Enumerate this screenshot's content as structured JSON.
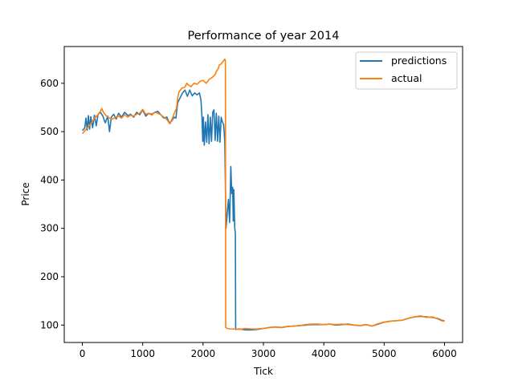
{
  "chart_data": {
    "type": "line",
    "title": "Performance of year 2014",
    "xlabel": "Tick",
    "ylabel": "Price",
    "xlim": [
      -300,
      6300
    ],
    "ylim": [
      64,
      676
    ],
    "xticks": [
      0,
      1000,
      2000,
      3000,
      4000,
      5000,
      6000
    ],
    "yticks": [
      100,
      200,
      300,
      400,
      500,
      600
    ],
    "grid": false,
    "legend_position": "top-right",
    "series": [
      {
        "name": "predictions",
        "color": "#1f77b4",
        "points": [
          [
            0,
            502
          ],
          [
            40,
            508
          ],
          [
            60,
            528
          ],
          [
            80,
            503
          ],
          [
            100,
            533
          ],
          [
            120,
            505
          ],
          [
            140,
            531
          ],
          [
            170,
            508
          ],
          [
            200,
            534
          ],
          [
            230,
            512
          ],
          [
            260,
            536
          ],
          [
            300,
            540
          ],
          [
            340,
            532
          ],
          [
            380,
            518
          ],
          [
            420,
            532
          ],
          [
            450,
            500
          ],
          [
            480,
            530
          ],
          [
            520,
            536
          ],
          [
            560,
            526
          ],
          [
            600,
            538
          ],
          [
            650,
            530
          ],
          [
            700,
            540
          ],
          [
            760,
            533
          ],
          [
            800,
            536
          ],
          [
            850,
            530
          ],
          [
            900,
            540
          ],
          [
            950,
            535
          ],
          [
            1000,
            545
          ],
          [
            1050,
            532
          ],
          [
            1100,
            538
          ],
          [
            1150,
            536
          ],
          [
            1200,
            540
          ],
          [
            1250,
            542
          ],
          [
            1300,
            535
          ],
          [
            1350,
            528
          ],
          [
            1400,
            530
          ],
          [
            1440,
            518
          ],
          [
            1480,
            522
          ],
          [
            1520,
            530
          ],
          [
            1550,
            528
          ],
          [
            1580,
            560
          ],
          [
            1620,
            570
          ],
          [
            1660,
            580
          ],
          [
            1700,
            586
          ],
          [
            1740,
            573
          ],
          [
            1780,
            586
          ],
          [
            1820,
            574
          ],
          [
            1860,
            580
          ],
          [
            1900,
            576
          ],
          [
            1940,
            580
          ],
          [
            1965,
            565
          ],
          [
            1980,
            535
          ],
          [
            1995,
            480
          ],
          [
            2005,
            530
          ],
          [
            2020,
            472
          ],
          [
            2040,
            520
          ],
          [
            2060,
            478
          ],
          [
            2080,
            535
          ],
          [
            2100,
            475
          ],
          [
            2120,
            530
          ],
          [
            2140,
            480
          ],
          [
            2160,
            540
          ],
          [
            2180,
            545
          ],
          [
            2200,
            482
          ],
          [
            2220,
            538
          ],
          [
            2240,
            480
          ],
          [
            2260,
            532
          ],
          [
            2280,
            478
          ],
          [
            2300,
            530
          ],
          [
            2320,
            520
          ],
          [
            2340,
            515
          ],
          [
            2360,
            480
          ],
          [
            2380,
            300
          ],
          [
            2400,
            330
          ],
          [
            2420,
            360
          ],
          [
            2440,
            312
          ],
          [
            2460,
            428
          ],
          [
            2475,
            372
          ],
          [
            2490,
            385
          ],
          [
            2500,
            315
          ],
          [
            2510,
            380
          ],
          [
            2525,
            300
          ],
          [
            2535,
            290
          ],
          [
            2540,
            91
          ],
          [
            2600,
            92
          ],
          [
            2700,
            90
          ],
          [
            2800,
            90
          ],
          [
            2900,
            91
          ],
          [
            3000,
            93
          ],
          [
            3100,
            95
          ],
          [
            3200,
            96
          ],
          [
            3300,
            95
          ],
          [
            3400,
            97
          ],
          [
            3500,
            98
          ],
          [
            3600,
            99
          ],
          [
            3700,
            100
          ],
          [
            3800,
            101
          ],
          [
            3900,
            101
          ],
          [
            4000,
            101
          ],
          [
            4100,
            102
          ],
          [
            4200,
            100
          ],
          [
            4300,
            101
          ],
          [
            4400,
            102
          ],
          [
            4500,
            100
          ],
          [
            4600,
            99
          ],
          [
            4700,
            101
          ],
          [
            4800,
            98
          ],
          [
            4900,
            102
          ],
          [
            5000,
            106
          ],
          [
            5100,
            108
          ],
          [
            5200,
            109
          ],
          [
            5300,
            110
          ],
          [
            5400,
            114
          ],
          [
            5500,
            117
          ],
          [
            5600,
            118
          ],
          [
            5700,
            117
          ],
          [
            5800,
            116
          ],
          [
            5900,
            113
          ],
          [
            5950,
            110
          ],
          [
            6000,
            109
          ]
        ]
      },
      {
        "name": "actual",
        "color": "#ff7f0e",
        "points": [
          [
            0,
            496
          ],
          [
            30,
            500
          ],
          [
            60,
            505
          ],
          [
            100,
            510
          ],
          [
            150,
            518
          ],
          [
            200,
            528
          ],
          [
            250,
            534
          ],
          [
            300,
            542
          ],
          [
            320,
            548
          ],
          [
            350,
            540
          ],
          [
            400,
            532
          ],
          [
            450,
            528
          ],
          [
            500,
            526
          ],
          [
            550,
            530
          ],
          [
            600,
            532
          ],
          [
            650,
            528
          ],
          [
            700,
            535
          ],
          [
            750,
            530
          ],
          [
            800,
            534
          ],
          [
            850,
            532
          ],
          [
            900,
            536
          ],
          [
            950,
            538
          ],
          [
            1000,
            546
          ],
          [
            1050,
            536
          ],
          [
            1100,
            538
          ],
          [
            1150,
            534
          ],
          [
            1200,
            540
          ],
          [
            1250,
            538
          ],
          [
            1300,
            535
          ],
          [
            1350,
            530
          ],
          [
            1400,
            525
          ],
          [
            1450,
            516
          ],
          [
            1500,
            530
          ],
          [
            1530,
            540
          ],
          [
            1560,
            548
          ],
          [
            1580,
            570
          ],
          [
            1600,
            582
          ],
          [
            1650,
            590
          ],
          [
            1700,
            592
          ],
          [
            1730,
            600
          ],
          [
            1760,
            596
          ],
          [
            1800,
            593
          ],
          [
            1850,
            600
          ],
          [
            1900,
            598
          ],
          [
            1950,
            604
          ],
          [
            2000,
            606
          ],
          [
            2050,
            600
          ],
          [
            2100,
            608
          ],
          [
            2150,
            612
          ],
          [
            2200,
            618
          ],
          [
            2220,
            625
          ],
          [
            2250,
            630
          ],
          [
            2270,
            638
          ],
          [
            2300,
            640
          ],
          [
            2330,
            645
          ],
          [
            2360,
            650
          ],
          [
            2370,
            645
          ],
          [
            2375,
            95
          ],
          [
            2400,
            93
          ],
          [
            2450,
            92
          ],
          [
            2500,
            92
          ],
          [
            2600,
            91
          ],
          [
            2700,
            93
          ],
          [
            2800,
            92
          ],
          [
            2900,
            92
          ],
          [
            3000,
            93
          ],
          [
            3100,
            95
          ],
          [
            3200,
            96
          ],
          [
            3300,
            95
          ],
          [
            3400,
            97
          ],
          [
            3500,
            98
          ],
          [
            3600,
            99
          ],
          [
            3700,
            101
          ],
          [
            3800,
            102
          ],
          [
            3900,
            102
          ],
          [
            4000,
            101
          ],
          [
            4100,
            102
          ],
          [
            4200,
            101
          ],
          [
            4300,
            102
          ],
          [
            4400,
            101
          ],
          [
            4500,
            100
          ],
          [
            4600,
            99
          ],
          [
            4700,
            101
          ],
          [
            4800,
            98
          ],
          [
            4900,
            103
          ],
          [
            5000,
            106
          ],
          [
            5100,
            108
          ],
          [
            5200,
            109
          ],
          [
            5300,
            110
          ],
          [
            5400,
            114
          ],
          [
            5500,
            117
          ],
          [
            5600,
            119
          ],
          [
            5700,
            116
          ],
          [
            5800,
            117
          ],
          [
            5900,
            112
          ],
          [
            5950,
            109
          ],
          [
            6000,
            108
          ]
        ]
      }
    ]
  }
}
